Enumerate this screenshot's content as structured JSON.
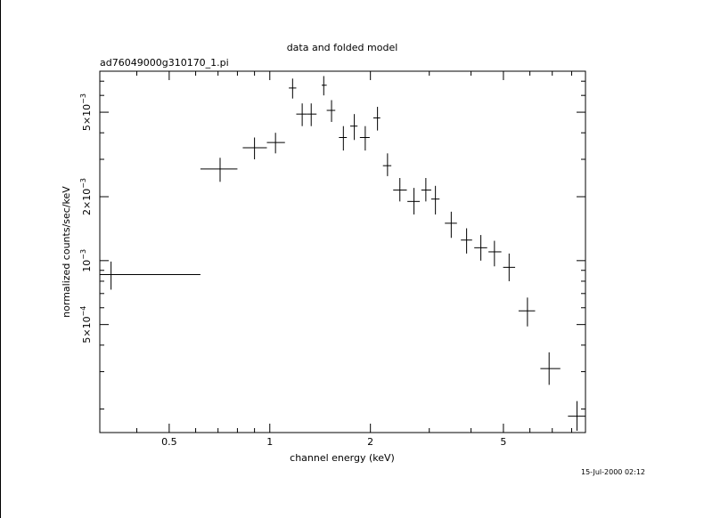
{
  "chart_data": {
    "type": "scatter",
    "title": "data and folded model",
    "subtitle": "ad76049000g310170_1.pi",
    "xlabel": "channel energy (keV)",
    "ylabel": "normalized counts/sec/keV",
    "xscale": "log",
    "yscale": "log",
    "xlim": [
      0.31,
      8.8
    ],
    "ylim": [
      0.000155,
      0.0078
    ],
    "x_ticks": [
      {
        "value": 0.5,
        "label": "0.5"
      },
      {
        "value": 1,
        "label": "1"
      },
      {
        "value": 2,
        "label": "2"
      },
      {
        "value": 5,
        "label": "5"
      }
    ],
    "y_ticks": [
      {
        "value": 0.0005,
        "mantissa": "5×10",
        "exponent": "−4"
      },
      {
        "value": 0.001,
        "mantissa": "10",
        "exponent": "−3"
      },
      {
        "value": 0.002,
        "mantissa": "2×10",
        "exponent": "−3"
      },
      {
        "value": 0.005,
        "mantissa": "5×10",
        "exponent": "−3"
      }
    ],
    "grid": false,
    "series": [
      {
        "points": [
          {
            "x": 0.335,
            "xlo": 0.31,
            "xhi": 0.62,
            "y": 0.00086,
            "ylo": 0.00073,
            "yhi": 0.00099
          },
          {
            "x": 0.71,
            "xlo": 0.62,
            "xhi": 0.8,
            "y": 0.0027,
            "ylo": 0.00235,
            "yhi": 0.00305
          },
          {
            "x": 0.9,
            "xlo": 0.83,
            "xhi": 0.98,
            "y": 0.0034,
            "ylo": 0.003,
            "yhi": 0.0038
          },
          {
            "x": 1.04,
            "xlo": 0.98,
            "xhi": 1.11,
            "y": 0.0036,
            "ylo": 0.0032,
            "yhi": 0.004
          },
          {
            "x": 1.17,
            "xlo": 1.14,
            "xhi": 1.2,
            "y": 0.0065,
            "ylo": 0.0058,
            "yhi": 0.0072
          },
          {
            "x": 1.25,
            "xlo": 1.2,
            "xhi": 1.29,
            "y": 0.0049,
            "ylo": 0.0043,
            "yhi": 0.0055
          },
          {
            "x": 1.33,
            "xlo": 1.29,
            "xhi": 1.38,
            "y": 0.0049,
            "ylo": 0.0043,
            "yhi": 0.0055
          },
          {
            "x": 1.45,
            "xlo": 1.43,
            "xhi": 1.48,
            "y": 0.0067,
            "ylo": 0.006,
            "yhi": 0.0074
          },
          {
            "x": 1.53,
            "xlo": 1.48,
            "xhi": 1.57,
            "y": 0.0051,
            "ylo": 0.0045,
            "yhi": 0.0057
          },
          {
            "x": 1.66,
            "xlo": 1.61,
            "xhi": 1.7,
            "y": 0.0038,
            "ylo": 0.0033,
            "yhi": 0.0043
          },
          {
            "x": 1.79,
            "xlo": 1.74,
            "xhi": 1.83,
            "y": 0.0043,
            "ylo": 0.0037,
            "yhi": 0.0049
          },
          {
            "x": 1.93,
            "xlo": 1.86,
            "xhi": 1.99,
            "y": 0.0038,
            "ylo": 0.0033,
            "yhi": 0.0043
          },
          {
            "x": 2.1,
            "xlo": 2.04,
            "xhi": 2.14,
            "y": 0.0047,
            "ylo": 0.0041,
            "yhi": 0.0053
          },
          {
            "x": 2.25,
            "xlo": 2.18,
            "xhi": 2.31,
            "y": 0.0028,
            "ylo": 0.0025,
            "yhi": 0.0032
          },
          {
            "x": 2.45,
            "xlo": 2.34,
            "xhi": 2.57,
            "y": 0.00215,
            "ylo": 0.0019,
            "yhi": 0.00245
          },
          {
            "x": 2.7,
            "xlo": 2.58,
            "xhi": 2.81,
            "y": 0.0019,
            "ylo": 0.00165,
            "yhi": 0.0022
          },
          {
            "x": 2.93,
            "xlo": 2.84,
            "xhi": 3.04,
            "y": 0.00215,
            "ylo": 0.0019,
            "yhi": 0.00245
          },
          {
            "x": 3.13,
            "xlo": 3.04,
            "xhi": 3.22,
            "y": 0.00195,
            "ylo": 0.00165,
            "yhi": 0.00225
          },
          {
            "x": 3.49,
            "xlo": 3.34,
            "xhi": 3.63,
            "y": 0.0015,
            "ylo": 0.00128,
            "yhi": 0.0017
          },
          {
            "x": 3.88,
            "xlo": 3.73,
            "xhi": 4.03,
            "y": 0.00125,
            "ylo": 0.00108,
            "yhi": 0.00142
          },
          {
            "x": 4.28,
            "xlo": 4.09,
            "xhi": 4.47,
            "y": 0.00115,
            "ylo": 0.001,
            "yhi": 0.00132
          },
          {
            "x": 4.7,
            "xlo": 4.51,
            "xhi": 4.93,
            "y": 0.0011,
            "ylo": 0.00094,
            "yhi": 0.00124
          },
          {
            "x": 5.2,
            "xlo": 4.99,
            "xhi": 5.42,
            "y": 0.00093,
            "ylo": 0.0008,
            "yhi": 0.00108
          },
          {
            "x": 5.9,
            "xlo": 5.55,
            "xhi": 6.22,
            "y": 0.00058,
            "ylo": 0.00049,
            "yhi": 0.00067
          },
          {
            "x": 6.85,
            "xlo": 6.45,
            "xhi": 7.4,
            "y": 0.00031,
            "ylo": 0.00026,
            "yhi": 0.00037
          },
          {
            "x": 8.3,
            "xlo": 7.8,
            "xhi": 8.8,
            "y": 0.000185,
            "ylo": 0.000158,
            "yhi": 0.000218
          }
        ]
      }
    ]
  },
  "timestamp": "15-Jul-2000 02:12"
}
